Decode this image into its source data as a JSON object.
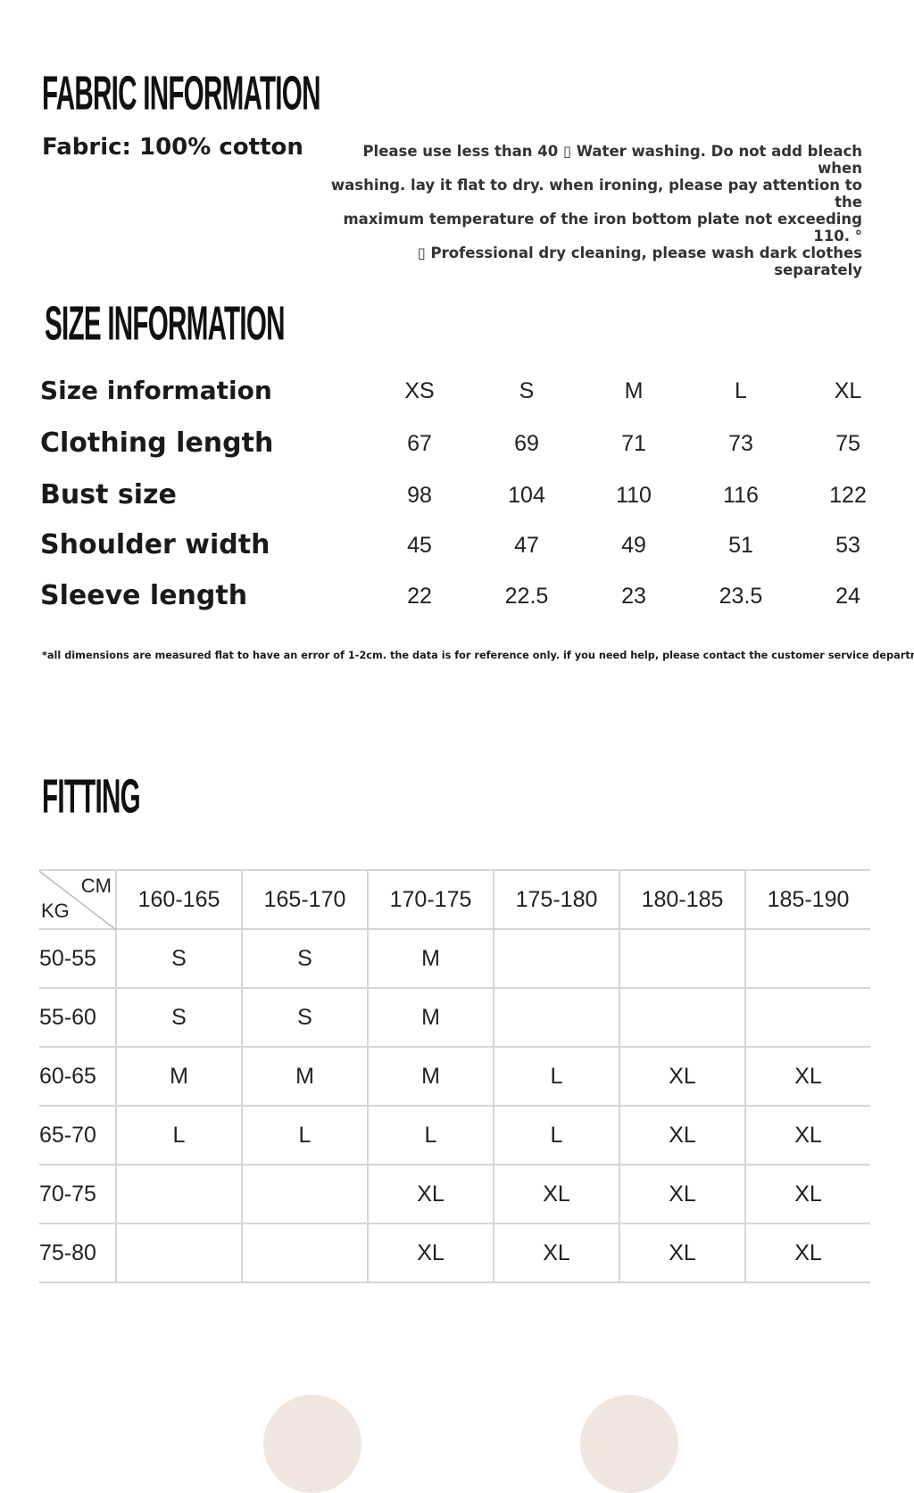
{
  "fabric_section": {
    "heading": "FABRIC INFORMATION",
    "fabric": "Fabric: 100% cotton",
    "care_lines": [
      "Please use less than 40 ▯ Water washing. Do not add bleach when",
      "washing. lay it flat to dry. when ironing, please pay attention to the",
      "maximum temperature of the iron bottom plate not exceeding 110. °",
      "▯ Professional dry cleaning, please wash dark clothes separately"
    ]
  },
  "size_section": {
    "heading": "SIZE INFORMATION",
    "rows": [
      {
        "label": "Size information",
        "values": [
          "XS",
          "S",
          "M",
          "L",
          "XL"
        ]
      },
      {
        "label": "Clothing length",
        "values": [
          "67",
          "69",
          "71",
          "73",
          "75"
        ]
      },
      {
        "label": "Bust size",
        "values": [
          "98",
          "104",
          "110",
          "116",
          "122"
        ]
      },
      {
        "label": "Shoulder width",
        "values": [
          "45",
          "47",
          "49",
          "51",
          "53"
        ]
      },
      {
        "label": "Sleeve length",
        "values": [
          "22",
          "22.5",
          "23",
          "23.5",
          "24"
        ]
      }
    ],
    "note": "*all dimensions are measured flat to have an error of 1-2cm. the data is for reference only. if you need help, please contact the customer service department"
  },
  "fitting_section": {
    "heading": "FITTING",
    "corner_col": "CM",
    "corner_row": "KG",
    "columns": [
      "160-165",
      "165-170",
      "170-175",
      "175-180",
      "180-185",
      "185-190"
    ],
    "rows": [
      {
        "kg": "50-55",
        "sizes": [
          "S",
          "S",
          "M",
          "",
          "",
          ""
        ]
      },
      {
        "kg": "55-60",
        "sizes": [
          "S",
          "S",
          "M",
          "",
          "",
          ""
        ]
      },
      {
        "kg": "60-65",
        "sizes": [
          "M",
          "M",
          "M",
          "L",
          "XL",
          "XL"
        ]
      },
      {
        "kg": "65-70",
        "sizes": [
          "L",
          "L",
          "L",
          "L",
          "XL",
          "XL"
        ]
      },
      {
        "kg": "70-75",
        "sizes": [
          "",
          "",
          "XL",
          "XL",
          "XL",
          "XL"
        ]
      },
      {
        "kg": "75-80",
        "sizes": [
          "",
          "",
          "XL",
          "XL",
          "XL",
          "XL"
        ]
      }
    ]
  }
}
